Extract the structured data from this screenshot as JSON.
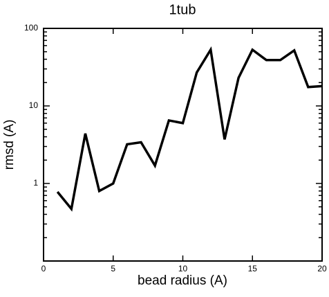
{
  "chart_data": {
    "type": "line",
    "title": "1tub",
    "x_label": "bead radius (A)",
    "y_label": "rmsd (A)",
    "x": [
      1,
      2,
      3,
      4,
      5,
      6,
      7,
      8,
      9,
      10,
      11,
      12,
      13,
      14,
      15,
      16,
      17,
      18,
      19,
      20
    ],
    "series": [
      {
        "name": "rmsd",
        "color": "#000000",
        "values": [
          0.78,
          0.47,
          4.4,
          0.8,
          1.0,
          3.2,
          3.4,
          1.7,
          6.5,
          6.0,
          27,
          53,
          3.7,
          23,
          53,
          39,
          39,
          52,
          17.5,
          18
        ]
      }
    ],
    "xlim": [
      0,
      20
    ],
    "xticks": [
      0,
      5,
      10,
      15,
      20
    ],
    "ylim": [
      0.1,
      100
    ],
    "yticks": [
      1,
      10,
      100
    ],
    "y_scale": "log",
    "grid": false
  }
}
